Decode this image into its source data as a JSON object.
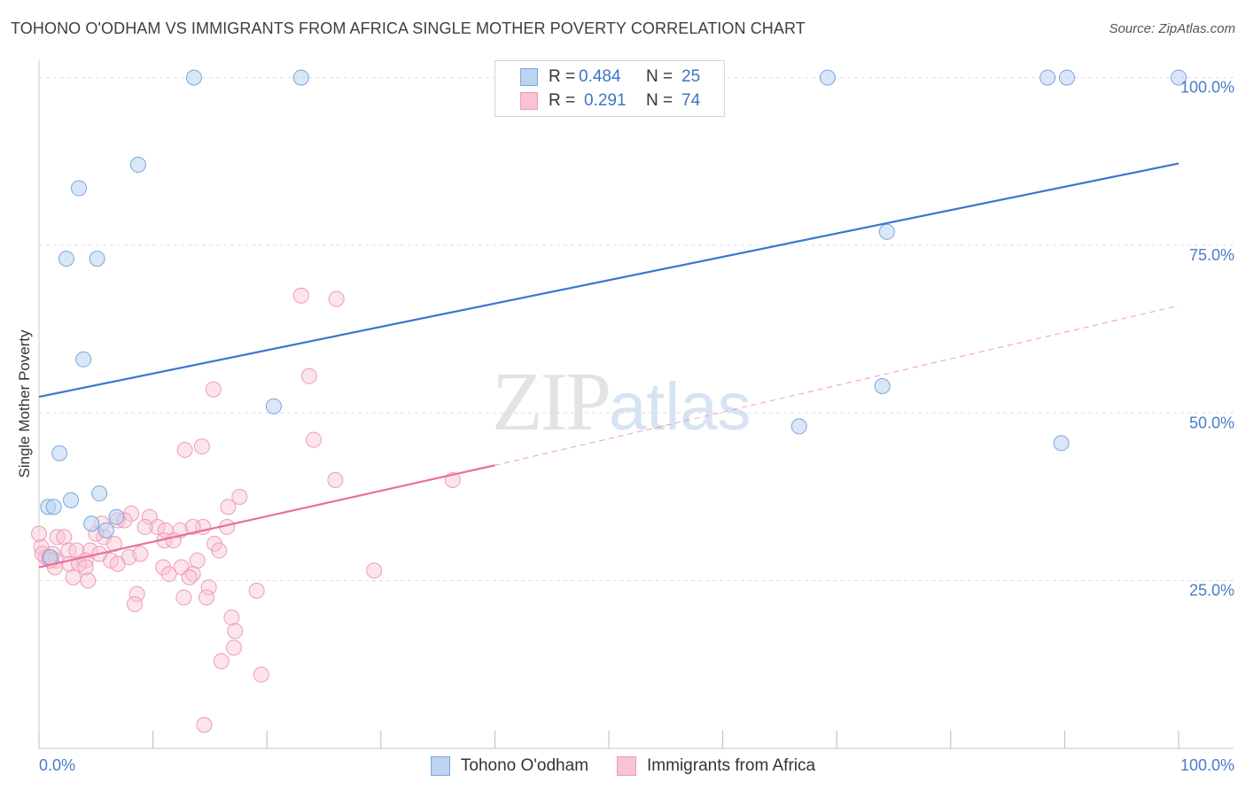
{
  "header": {
    "title": "TOHONO O'ODHAM VS IMMIGRANTS FROM AFRICA SINGLE MOTHER POVERTY CORRELATION CHART",
    "source": "Source: ZipAtlas.com"
  },
  "watermark": {
    "zip": "ZIP",
    "atlas": "atlas"
  },
  "legend": {
    "r_label": "R =",
    "n_label": "N =",
    "rows": [
      {
        "r": "0.484",
        "n": "25"
      },
      {
        "r": "0.291",
        "n": "74"
      }
    ]
  },
  "colors": {
    "blue_fill": "#bcd3f2",
    "blue_stroke": "#7aa6de",
    "blue_line": "#3a78cc",
    "pink_fill": "#f8c3d3",
    "pink_stroke": "#ee9bb5",
    "pink_line": "#e8709a",
    "tick_label": "#4a7cc7",
    "grid": "#dddddd"
  },
  "chart_data": {
    "type": "scatter",
    "ylabel": "Single Mother Poverty",
    "xlim": [
      0,
      100
    ],
    "ylim": [
      0,
      101
    ],
    "x_tick_labels": [
      {
        "value": 0,
        "label": "0.0%"
      },
      {
        "value": 100,
        "label": "100.0%"
      }
    ],
    "y_tick_labels": [
      {
        "value": 25,
        "label": "25.0%"
      },
      {
        "value": 50,
        "label": "50.0%"
      },
      {
        "value": 75,
        "label": "75.0%"
      },
      {
        "value": 100,
        "label": "100.0%"
      }
    ],
    "grid": true,
    "legend_position": "top-center",
    "series": [
      {
        "name": "Tohono O'odham",
        "color": "#7aa6de",
        "points": [
          [
            13.6,
            100
          ],
          [
            23.0,
            100
          ],
          [
            69.2,
            100
          ],
          [
            88.5,
            100
          ],
          [
            90.2,
            100
          ],
          [
            100,
            100
          ],
          [
            8.7,
            87
          ],
          [
            3.5,
            83.5
          ],
          [
            2.4,
            73
          ],
          [
            5.1,
            73
          ],
          [
            3.9,
            58
          ],
          [
            20.6,
            51
          ],
          [
            74.4,
            77
          ],
          [
            74.0,
            54
          ],
          [
            66.7,
            48
          ],
          [
            89.7,
            45.5
          ],
          [
            1.8,
            44
          ],
          [
            5.3,
            38
          ],
          [
            2.8,
            37
          ],
          [
            0.8,
            36
          ],
          [
            1.3,
            36
          ],
          [
            4.6,
            33.5
          ],
          [
            5.9,
            32.5
          ],
          [
            6.8,
            34.5
          ],
          [
            1.0,
            28.5
          ]
        ],
        "trend": {
          "x": [
            0,
            100
          ],
          "y": [
            52.4,
            87.2
          ]
        }
      },
      {
        "name": "Immigrants from Africa",
        "color": "#ee9bb5",
        "points": [
          [
            23.0,
            67.5
          ],
          [
            26.1,
            67
          ],
          [
            23.7,
            55.5
          ],
          [
            15.3,
            53.5
          ],
          [
            24.1,
            46
          ],
          [
            14.3,
            45
          ],
          [
            12.8,
            44.5
          ],
          [
            26.0,
            40
          ],
          [
            36.3,
            40
          ],
          [
            17.6,
            37.5
          ],
          [
            16.6,
            36
          ],
          [
            8.1,
            35
          ],
          [
            9.7,
            34.5
          ],
          [
            6.9,
            34
          ],
          [
            7.5,
            34
          ],
          [
            5.5,
            33.5
          ],
          [
            14.4,
            33
          ],
          [
            16.5,
            33
          ],
          [
            10.4,
            33
          ],
          [
            11.1,
            32.5
          ],
          [
            12.4,
            32.5
          ],
          [
            1.6,
            31.5
          ],
          [
            2.2,
            31.5
          ],
          [
            5.7,
            31.5
          ],
          [
            11.0,
            31
          ],
          [
            11.8,
            31
          ],
          [
            6.6,
            30.5
          ],
          [
            15.4,
            30.5
          ],
          [
            0.2,
            30
          ],
          [
            2.6,
            29.5
          ],
          [
            3.3,
            29.5
          ],
          [
            4.5,
            29.5
          ],
          [
            15.8,
            29.5
          ],
          [
            1.2,
            29
          ],
          [
            0.6,
            28.5
          ],
          [
            1.5,
            28
          ],
          [
            7.9,
            28.5
          ],
          [
            8.9,
            29
          ],
          [
            4.1,
            28
          ],
          [
            6.3,
            28
          ],
          [
            2.7,
            27.5
          ],
          [
            3.5,
            27.5
          ],
          [
            1.4,
            27
          ],
          [
            4.1,
            27
          ],
          [
            6.9,
            27.5
          ],
          [
            10.9,
            27
          ],
          [
            12.5,
            27
          ],
          [
            11.4,
            26
          ],
          [
            13.5,
            26
          ],
          [
            13.9,
            28
          ],
          [
            3.0,
            25.5
          ],
          [
            4.3,
            25
          ],
          [
            13.2,
            25.5
          ],
          [
            14.9,
            24
          ],
          [
            19.1,
            23.5
          ],
          [
            8.6,
            23
          ],
          [
            12.7,
            22.5
          ],
          [
            14.7,
            22.5
          ],
          [
            8.4,
            21.5
          ],
          [
            16.9,
            19.5
          ],
          [
            17.2,
            17.5
          ],
          [
            17.1,
            15
          ],
          [
            16.0,
            13
          ],
          [
            19.5,
            11
          ],
          [
            14.5,
            3.5
          ],
          [
            0.0,
            32
          ],
          [
            0.3,
            29
          ],
          [
            0.9,
            28.5
          ],
          [
            29.4,
            26.5
          ],
          [
            1.0,
            28
          ],
          [
            5.3,
            29
          ],
          [
            13.5,
            33
          ],
          [
            9.3,
            33
          ],
          [
            5.0,
            32
          ]
        ],
        "trend": {
          "x": [
            0,
            40
          ],
          "y": [
            27,
            42.2
          ]
        },
        "trend_dashed": {
          "x": [
            40,
            100
          ],
          "y": [
            42.2,
            66
          ]
        }
      }
    ]
  },
  "bottom_legend": [
    {
      "label": "Tohono O'odham"
    },
    {
      "label": "Immigrants from Africa"
    }
  ]
}
